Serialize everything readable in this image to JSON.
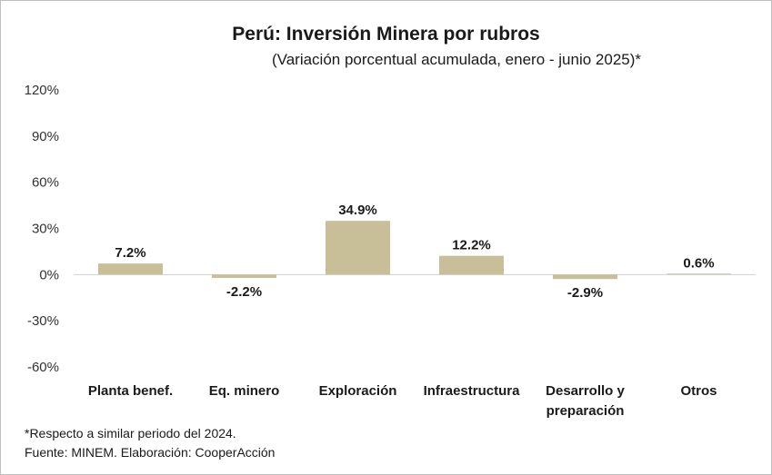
{
  "chart_data": {
    "type": "bar",
    "title": "Perú: Inversión Minera por rubros",
    "subtitle": "(Variación porcentual acumulada, enero - junio 2025)*",
    "categories": [
      [
        "Planta benef."
      ],
      [
        "Eq. minero"
      ],
      [
        "Exploración"
      ],
      [
        "Infraestructura"
      ],
      [
        "Desarrollo y",
        "preparación"
      ],
      [
        "Otros"
      ]
    ],
    "values": [
      7.2,
      -2.2,
      34.9,
      12.2,
      -2.9,
      0.6
    ],
    "data_labels": [
      "7.2%",
      "-2.2%",
      "34.9%",
      "12.2%",
      "-2.9%",
      "0.6%"
    ],
    "yticks": [
      120,
      90,
      60,
      30,
      0,
      -30,
      -60
    ],
    "ytick_labels": [
      "120%",
      "90%",
      "60%",
      "30%",
      "0%",
      "-30%",
      "-60%"
    ],
    "ylim": [
      -60,
      120
    ],
    "grid": false,
    "legend": "none",
    "bar_color": "#c8bf99"
  },
  "footnotes": {
    "note": "*Respecto a similar periodo del 2024.",
    "source": "Fuente: MINEM. Elaboración: CooperAcción"
  }
}
